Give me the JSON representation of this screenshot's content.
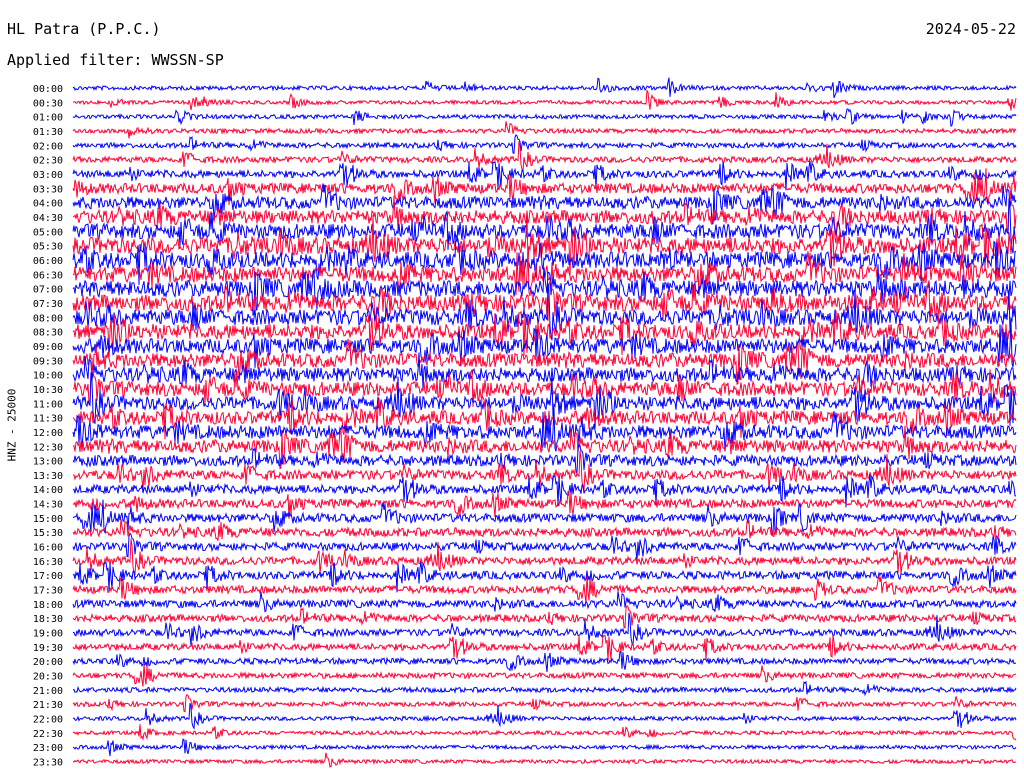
{
  "header": {
    "station": "HL Patra (P.P.C.)",
    "date": "2024-05-22",
    "filter_label": "Applied filter: WWSSN-SP"
  },
  "channel_label": "HNZ - 25000",
  "colors": {
    "even_rows": "#0000ff",
    "odd_rows": "#ff0033",
    "background": "#ffffff"
  },
  "chart_data": {
    "type": "line",
    "title": "HL Patra (P.P.C.)",
    "subtitle": "Applied filter: WWSSN-SP",
    "ylabel": "HNZ - 25000",
    "xlabel": "",
    "row_labels": [
      "00:00",
      "00:30",
      "01:00",
      "01:30",
      "02:00",
      "02:30",
      "03:00",
      "03:30",
      "04:00",
      "04:30",
      "05:00",
      "05:30",
      "06:00",
      "06:30",
      "07:00",
      "07:30",
      "08:00",
      "08:30",
      "09:00",
      "09:30",
      "10:00",
      "10:30",
      "11:00",
      "11:30",
      "12:00",
      "12:30",
      "13:00",
      "13:30",
      "14:00",
      "14:30",
      "15:00",
      "15:30",
      "16:00",
      "16:30",
      "17:00",
      "17:30",
      "18:00",
      "18:30",
      "19:00",
      "19:30",
      "20:00",
      "20:30",
      "21:00",
      "21:30",
      "22:00",
      "22:30",
      "23:00",
      "23:30"
    ],
    "relative_activity": [
      0.12,
      0.1,
      0.12,
      0.15,
      0.2,
      0.25,
      0.35,
      0.55,
      0.7,
      0.8,
      0.9,
      1.0,
      1.0,
      0.95,
      1.0,
      1.0,
      0.95,
      0.9,
      0.9,
      0.85,
      0.85,
      0.85,
      0.8,
      0.8,
      0.8,
      0.75,
      0.6,
      0.5,
      0.45,
      0.45,
      0.45,
      0.45,
      0.4,
      0.4,
      0.4,
      0.38,
      0.38,
      0.35,
      0.32,
      0.3,
      0.25,
      0.22,
      0.18,
      0.15,
      0.12,
      0.1,
      0.1,
      0.1
    ],
    "grid": false,
    "legend": "none"
  }
}
